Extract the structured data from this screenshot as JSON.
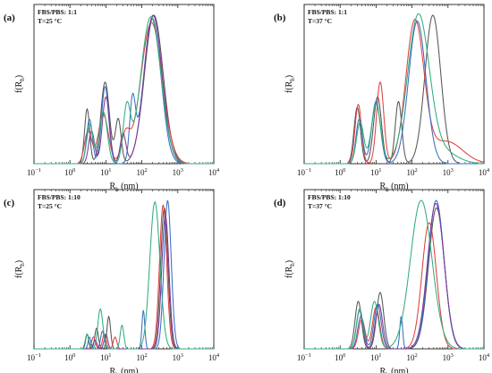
{
  "chart_data": [
    {
      "type": "line",
      "panel_label": "(a)",
      "condition": [
        "FBS/PBS: 1:1",
        "T=25 °C"
      ],
      "xlabel": "R",
      "xlabel_sub": "h",
      "xlabel_unit": " (nm)",
      "ylabel": "f(R",
      "ylabel_sub": "h",
      "ylabel_end": ")",
      "xscale": "log",
      "xlim": [
        0.1,
        10000
      ],
      "ylim": [
        0,
        1
      ],
      "xtick_exponents": [
        -1,
        0,
        1,
        2,
        3,
        4
      ],
      "series": [
        {
          "color": "#555555",
          "peaks": [
            [
              3.0,
              0.37,
              0.07
            ],
            [
              9.5,
              0.55,
              0.12
            ],
            [
              22,
              0.3,
              0.08
            ],
            [
              215,
              1.0,
              0.26
            ]
          ]
        },
        {
          "color": "#e04040",
          "peaks": [
            [
              3.2,
              0.22,
              0.1
            ],
            [
              8.5,
              0.33,
              0.14
            ],
            [
              35,
              0.18,
              0.12
            ],
            [
              185,
              0.95,
              0.3
            ]
          ]
        },
        {
          "color": "#3a6fc0",
          "peaks": [
            [
              3.5,
              0.3,
              0.08
            ],
            [
              9.5,
              0.52,
              0.1
            ],
            [
              55,
              0.4,
              0.08
            ],
            [
              195,
              0.98,
              0.24
            ]
          ]
        },
        {
          "color": "#7a3a9a",
          "peaks": [
            [
              4.0,
              0.22,
              0.08
            ],
            [
              10,
              0.45,
              0.1
            ],
            [
              30,
              0.2,
              0.08
            ],
            [
              205,
              1.0,
              0.25
            ]
          ]
        },
        {
          "color": "#2fae7d",
          "peaks": [
            [
              3.6,
              0.26,
              0.09
            ],
            [
              8.5,
              0.35,
              0.11
            ],
            [
              38,
              0.36,
              0.1
            ],
            [
              178,
              0.99,
              0.28
            ]
          ]
        }
      ]
    },
    {
      "type": "line",
      "panel_label": "(b)",
      "condition": [
        "FBS/PBS: 1:1",
        "T=37 °C"
      ],
      "xlabel": "R",
      "xlabel_sub": "h",
      "xlabel_unit": " (nm)",
      "ylabel": "f(R",
      "ylabel_sub": "h",
      "ylabel_end": ")",
      "xscale": "log",
      "xlim": [
        0.1,
        10000
      ],
      "ylim": [
        0,
        1
      ],
      "xtick_exponents": [
        -1,
        0,
        1,
        2,
        3,
        4
      ],
      "series": [
        {
          "color": "#555555",
          "peaks": [
            [
              3.0,
              0.38,
              0.09
            ],
            [
              11,
              0.45,
              0.11
            ],
            [
              42,
              0.42,
              0.09
            ],
            [
              380,
              1.0,
              0.22
            ]
          ]
        },
        {
          "color": "#e04040",
          "peaks": [
            [
              3.2,
              0.4,
              0.09
            ],
            [
              13,
              0.55,
              0.1
            ],
            [
              120,
              0.95,
              0.25
            ],
            [
              900,
              0.15,
              0.45
            ]
          ]
        },
        {
          "color": "#3a6fc0",
          "peaks": [
            [
              3.4,
              0.3,
              0.09
            ],
            [
              10,
              0.42,
              0.12
            ],
            [
              140,
              0.96,
              0.24
            ]
          ]
        },
        {
          "color": "#2fae7d",
          "peaks": [
            [
              3.6,
              0.28,
              0.1
            ],
            [
              10,
              0.4,
              0.13
            ],
            [
              150,
              0.99,
              0.3
            ],
            [
              700,
              0.08,
              0.4
            ]
          ]
        }
      ]
    },
    {
      "type": "line",
      "panel_label": "(c)",
      "condition": [
        "FBS/PBS: 1:10",
        "T=25 °C"
      ],
      "xlabel": "R",
      "xlabel_sub": "h",
      "xlabel_unit": " (nm)",
      "ylabel": "f(R",
      "ylabel_sub": "h",
      "ylabel_end": ")",
      "xscale": "log",
      "xlim": [
        0.1,
        10000
      ],
      "ylim": [
        0,
        1
      ],
      "xtick_exponents": [
        -1,
        0,
        1,
        2,
        3,
        4
      ],
      "series": [
        {
          "color": "#555555",
          "peaks": [
            [
              3.0,
              0.1,
              0.04
            ],
            [
              5.5,
              0.14,
              0.05
            ],
            [
              12,
              0.22,
              0.05
            ],
            [
              420,
              0.95,
              0.1
            ]
          ]
        },
        {
          "color": "#e04040",
          "peaks": [
            [
              4.5,
              0.08,
              0.05
            ],
            [
              9,
              0.1,
              0.05
            ],
            [
              18,
              0.08,
              0.05
            ],
            [
              390,
              0.97,
              0.1
            ]
          ]
        },
        {
          "color": "#3a6fc0",
          "peaks": [
            [
              3.5,
              0.08,
              0.04
            ],
            [
              8,
              0.12,
              0.05
            ],
            [
              110,
              0.26,
              0.04
            ],
            [
              520,
              1.0,
              0.1
            ]
          ]
        },
        {
          "color": "#7a3a9a",
          "peaks": [
            [
              5,
              0.06,
              0.05
            ],
            [
              10,
              0.1,
              0.05
            ],
            [
              450,
              0.9,
              0.1
            ]
          ]
        },
        {
          "color": "#2fae7d",
          "peaks": [
            [
              3.0,
              0.1,
              0.05
            ],
            [
              7,
              0.27,
              0.07
            ],
            [
              28,
              0.16,
              0.05
            ],
            [
              230,
              0.99,
              0.14
            ]
          ]
        }
      ]
    },
    {
      "type": "line",
      "panel_label": "(d)",
      "condition": [
        "FBS/PBS: 1:10",
        "T=37 °C"
      ],
      "xlabel": "R",
      "xlabel_sub": "h",
      "xlabel_unit": " (nm)",
      "ylabel": "f(R",
      "ylabel_sub": "h",
      "ylabel_end": ")",
      "xscale": "log",
      "xlim": [
        0.1,
        10000
      ],
      "ylim": [
        0,
        1
      ],
      "xtick_exponents": [
        -1,
        0,
        1,
        2,
        3,
        4
      ],
      "series": [
        {
          "color": "#555555",
          "peaks": [
            [
              3.2,
              0.32,
              0.09
            ],
            [
              13,
              0.38,
              0.1
            ],
            [
              480,
              0.95,
              0.22
            ]
          ]
        },
        {
          "color": "#e04040",
          "peaks": [
            [
              4.0,
              0.2,
              0.09
            ],
            [
              10,
              0.28,
              0.1
            ],
            [
              300,
              0.85,
              0.2
            ]
          ]
        },
        {
          "color": "#3a6fc0",
          "peaks": [
            [
              3.8,
              0.22,
              0.09
            ],
            [
              11,
              0.3,
              0.1
            ],
            [
              50,
              0.22,
              0.04
            ],
            [
              470,
              1.0,
              0.22
            ]
          ]
        },
        {
          "color": "#7a3a9a",
          "peaks": [
            [
              3.5,
              0.26,
              0.09
            ],
            [
              12,
              0.3,
              0.1
            ],
            [
              460,
              0.98,
              0.23
            ]
          ]
        },
        {
          "color": "#2fae7d",
          "peaks": [
            [
              3.5,
              0.27,
              0.09
            ],
            [
              9,
              0.32,
              0.11
            ],
            [
              180,
              1.0,
              0.3
            ]
          ]
        }
      ]
    }
  ]
}
